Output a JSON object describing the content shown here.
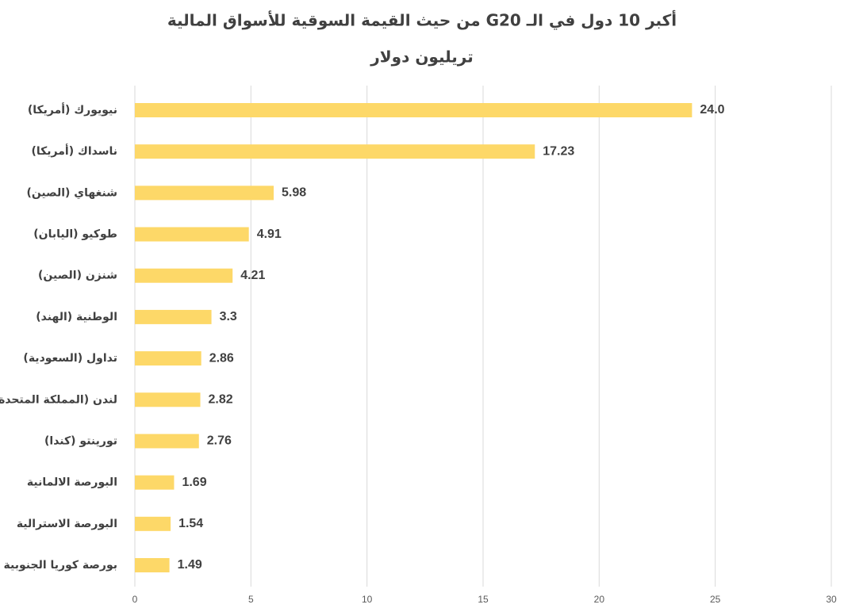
{
  "chart_data": {
    "type": "bar",
    "orientation": "horizontal",
    "title": "أكبر 10 دول في الـ G20 من حيث القيمة السوقية للأسواق المالية",
    "subtitle": "تريليون دولار",
    "categories": [
      "نيويورك (أمريكا)",
      "ناسداك (أمريكا)",
      "شنغهاي (الصين)",
      "طوكيو (اليابان)",
      "شنزن (الصين)",
      "الوطنية (الهند)",
      "تداول (السعودية)",
      "لندن (المملكة المتحدة)",
      "تورينتو (كندا)",
      "البورصة الالمانية",
      "البورصة الاسترالية",
      "بورصة كوريا الجنوبية"
    ],
    "values": [
      24.0,
      17.23,
      5.98,
      4.91,
      4.21,
      3.3,
      2.86,
      2.82,
      2.76,
      1.69,
      1.54,
      1.49
    ],
    "value_labels": [
      "24.0",
      "17.23",
      "5.98",
      "4.91",
      "4.21",
      "3.3",
      "2.86",
      "2.82",
      "2.76",
      "1.69",
      "1.54",
      "1.49"
    ],
    "color": "#fdd868",
    "xlim": [
      0,
      30
    ],
    "xticks": [
      0,
      5,
      10,
      15,
      20,
      25,
      30
    ],
    "grid": true
  }
}
